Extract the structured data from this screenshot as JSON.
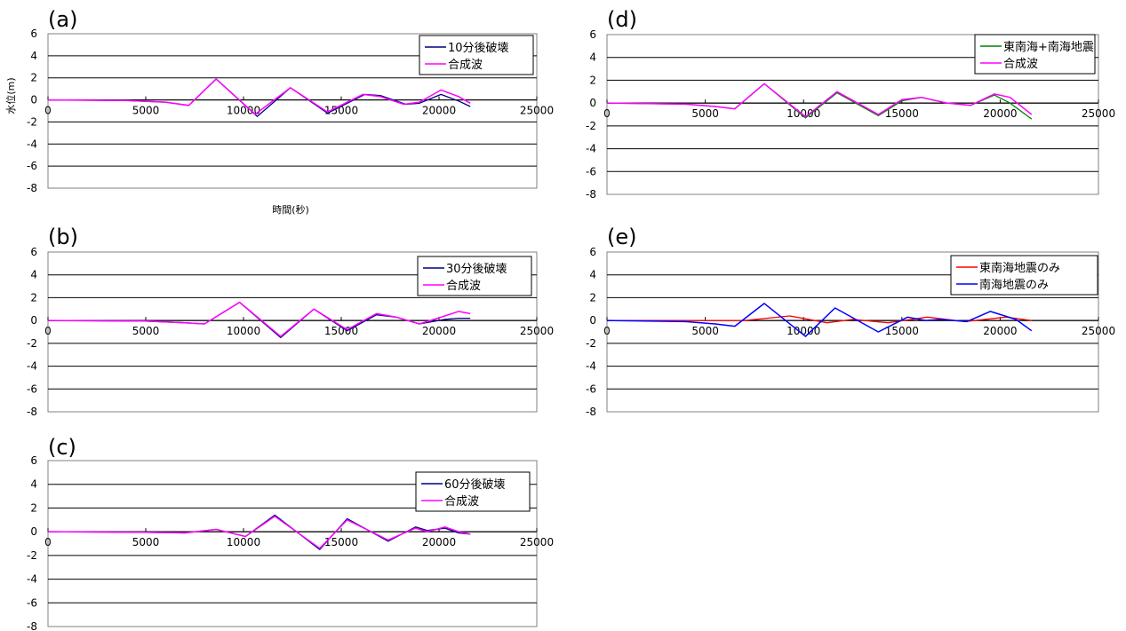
{
  "chart_data": [
    {
      "type": "line",
      "panel_label": "(a)",
      "ylabel": "水位(m)",
      "xlabel": "時間(秒)",
      "xlim": [
        0,
        25000
      ],
      "ylim": [
        -8,
        6
      ],
      "xticks": [
        "0",
        "5000",
        "10000",
        "15000",
        "20000",
        "25000"
      ],
      "yticks": [
        "6",
        "4",
        "2",
        "0",
        "-2",
        "-4",
        "-6",
        "-8"
      ],
      "grid": true,
      "legend": "top-right",
      "series": [
        {
          "name": "10分後破壊",
          "color": "#000080",
          "x": [
            0,
            4000,
            6000,
            7200,
            8600,
            10700,
            12400,
            14300,
            16200,
            17000,
            18300,
            19000,
            20100,
            21000,
            21600
          ],
          "y": [
            0,
            -0.05,
            -0.2,
            -0.5,
            1.9,
            -1.5,
            1.1,
            -1.2,
            0.5,
            0.4,
            -0.4,
            -0.3,
            0.5,
            -0.1,
            -0.6
          ]
        },
        {
          "name": "合成波",
          "color": "#ff00ff",
          "x": [
            0,
            4000,
            6000,
            7200,
            8600,
            10600,
            12400,
            14300,
            16100,
            17000,
            18200,
            19000,
            20100,
            21000,
            21600
          ],
          "y": [
            0,
            -0.05,
            -0.2,
            -0.5,
            1.9,
            -1.3,
            1.1,
            -1.1,
            0.5,
            0.3,
            -0.4,
            -0.2,
            0.9,
            0.3,
            -0.3
          ]
        }
      ]
    },
    {
      "type": "line",
      "panel_label": "(b)",
      "xlim": [
        0,
        25000
      ],
      "ylim": [
        -8,
        6
      ],
      "xticks": [
        "0",
        "5000",
        "10000",
        "15000",
        "20000",
        "25000"
      ],
      "yticks": [
        "6",
        "4",
        "2",
        "0",
        "-2",
        "-4",
        "-6",
        "-8"
      ],
      "grid": true,
      "legend": "top-right",
      "series": [
        {
          "name": "30分後破壊",
          "color": "#000080",
          "x": [
            0,
            5000,
            7000,
            8000,
            9800,
            11900,
            13600,
            15300,
            16800,
            17800,
            19000,
            20300,
            21000,
            21600
          ],
          "y": [
            0,
            -0.05,
            -0.2,
            -0.3,
            1.6,
            -1.5,
            1.0,
            -0.9,
            0.5,
            0.3,
            -0.3,
            0.1,
            0.2,
            0.2
          ]
        },
        {
          "name": "合成波",
          "color": "#ff00ff",
          "x": [
            0,
            5000,
            7000,
            8000,
            9800,
            11900,
            13600,
            15300,
            16800,
            17800,
            19000,
            20300,
            21000,
            21600
          ],
          "y": [
            0,
            -0.05,
            -0.2,
            -0.3,
            1.6,
            -1.4,
            1.0,
            -0.8,
            0.6,
            0.3,
            -0.3,
            0.4,
            0.8,
            0.6
          ]
        }
      ]
    },
    {
      "type": "line",
      "panel_label": "(c)",
      "xlim": [
        0,
        25000
      ],
      "ylim": [
        -8,
        6
      ],
      "xticks": [
        "0",
        "5000",
        "10000",
        "15000",
        "20000",
        "25000"
      ],
      "yticks": [
        "6",
        "4",
        "2",
        "0",
        "-2",
        "-4",
        "-6",
        "-8"
      ],
      "grid": true,
      "legend": "top-right",
      "series": [
        {
          "name": "60分後破壊",
          "color": "#000080",
          "x": [
            0,
            5000,
            7000,
            8600,
            10100,
            11600,
            13900,
            15300,
            17400,
            18800,
            19400,
            20300,
            21000,
            21600
          ],
          "y": [
            0,
            -0.05,
            -0.1,
            0.2,
            -0.4,
            1.4,
            -1.5,
            1.1,
            -0.8,
            0.4,
            0.1,
            0.3,
            -0.1,
            -0.2
          ]
        },
        {
          "name": "合成波",
          "color": "#ff00ff",
          "x": [
            0,
            5000,
            7000,
            8600,
            10100,
            11600,
            13900,
            15300,
            17400,
            18800,
            19400,
            20300,
            21000,
            21600
          ],
          "y": [
            0,
            -0.05,
            -0.1,
            0.2,
            -0.4,
            1.3,
            -1.4,
            1.0,
            -0.7,
            0.3,
            0.0,
            0.4,
            0.0,
            -0.2
          ]
        }
      ]
    },
    {
      "type": "line",
      "panel_label": "(d)",
      "xlim": [
        0,
        25000
      ],
      "ylim": [
        -8,
        6
      ],
      "xticks": [
        "0",
        "5000",
        "10000",
        "15000",
        "20000",
        "25000"
      ],
      "yticks": [
        "6",
        "4",
        "2",
        "0",
        "-2",
        "-4",
        "-6",
        "-8"
      ],
      "grid": true,
      "legend": "top-right",
      "series": [
        {
          "name": "東南海+南海地震",
          "color": "#008000",
          "x": [
            0,
            4000,
            5500,
            6500,
            8000,
            10100,
            11700,
            13800,
            15000,
            16000,
            16500,
            17300,
            18500,
            19700,
            20500,
            21600
          ],
          "y": [
            0,
            -0.1,
            -0.3,
            -0.5,
            1.7,
            -1.3,
            0.9,
            -1.1,
            0.2,
            0.5,
            0.3,
            0.0,
            -0.2,
            0.7,
            0.0,
            -1.4
          ]
        },
        {
          "name": "合成波",
          "color": "#ff00ff",
          "x": [
            0,
            4000,
            5500,
            6500,
            8000,
            10100,
            11700,
            13800,
            15000,
            16000,
            16500,
            17300,
            18500,
            19700,
            20500,
            21600
          ],
          "y": [
            0,
            -0.1,
            -0.3,
            -0.5,
            1.7,
            -1.2,
            1.0,
            -1.0,
            0.3,
            0.5,
            0.3,
            0.0,
            -0.2,
            0.8,
            0.5,
            -1.0
          ]
        }
      ]
    },
    {
      "type": "line",
      "panel_label": "(e)",
      "xlim": [
        0,
        25000
      ],
      "ylim": [
        -8,
        6
      ],
      "xticks": [
        "0",
        "5000",
        "10000",
        "15000",
        "20000",
        "25000"
      ],
      "yticks": [
        "6",
        "4",
        "2",
        "0",
        "-2",
        "-4",
        "-6",
        "-8"
      ],
      "grid": true,
      "legend": "top-right",
      "series": [
        {
          "name": "東南海地震のみ",
          "color": "#ff0000",
          "x": [
            0,
            5000,
            7000,
            9300,
            11200,
            12500,
            14300,
            16300,
            18200,
            20300,
            21600
          ],
          "y": [
            0,
            0,
            0,
            0.4,
            -0.2,
            0.1,
            -0.2,
            0.3,
            -0.1,
            0.3,
            0.0
          ]
        },
        {
          "name": "南海地震のみ",
          "color": "#0000ff",
          "x": [
            0,
            4000,
            5500,
            6500,
            8000,
            10100,
            11600,
            13800,
            15300,
            16200,
            17000,
            18300,
            19500,
            20800,
            21600
          ],
          "y": [
            0,
            -0.1,
            -0.3,
            -0.5,
            1.5,
            -1.4,
            1.1,
            -1.0,
            0.3,
            0.0,
            0.1,
            -0.1,
            0.8,
            0.1,
            -0.9
          ]
        }
      ]
    }
  ]
}
